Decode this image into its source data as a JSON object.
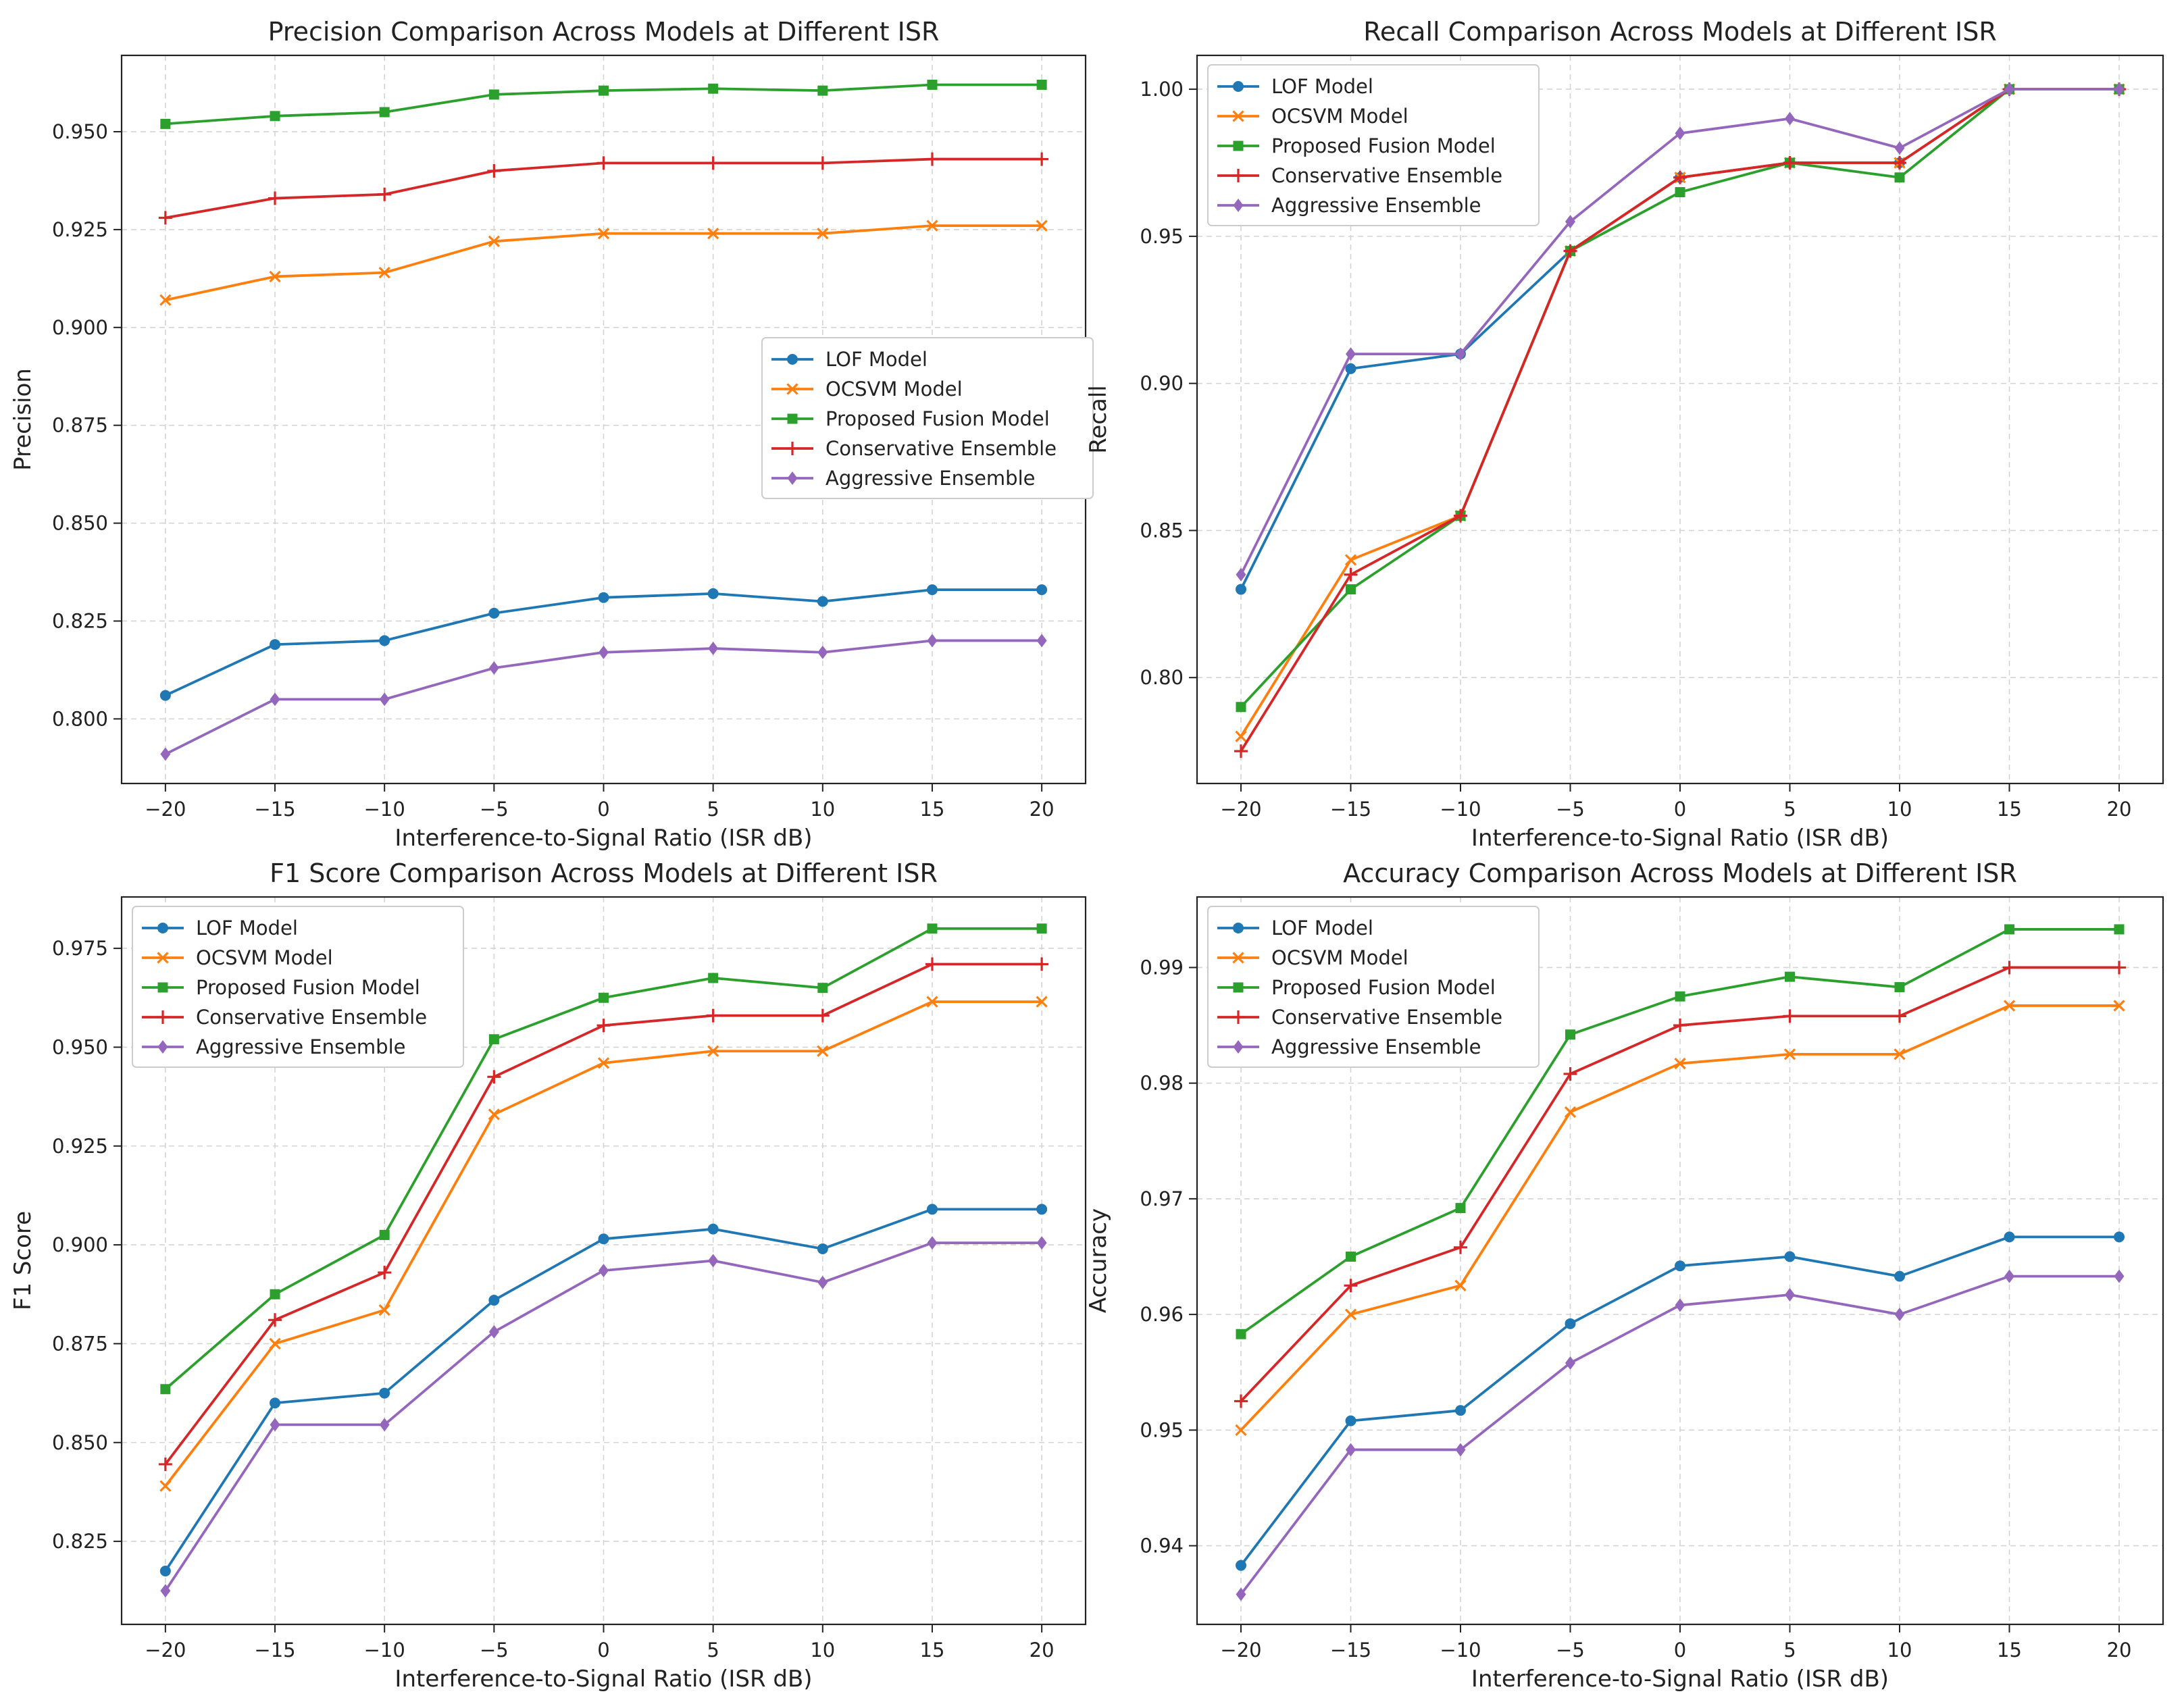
{
  "colors": {
    "lof": "#1f77b4",
    "ocsvm": "#ff7f0e",
    "fusion": "#2ca02c",
    "conservative": "#d62728",
    "aggressive": "#9467bd"
  },
  "chart_data": [
    {
      "type": "line",
      "title": "Precision Comparison Across Models at Different ISR",
      "xlabel": "Interference-to-Signal Ratio (ISR dB)",
      "ylabel": "Precision",
      "x": [
        -20,
        -15,
        -10,
        -5,
        0,
        5,
        10,
        15,
        20
      ],
      "xticks": [
        -20,
        -15,
        -10,
        -5,
        0,
        5,
        10,
        15,
        20
      ],
      "xtick_labels": [
        "−20",
        "−15",
        "−10",
        "−5",
        "0",
        "5",
        "10",
        "15",
        "20"
      ],
      "xlim": [
        -22,
        22
      ],
      "ylim": [
        0.7835,
        0.9695
      ],
      "yticks": [
        0.8,
        0.825,
        0.85,
        0.875,
        0.9,
        0.925,
        0.95
      ],
      "ytick_labels": [
        "0.800",
        "0.825",
        "0.850",
        "0.875",
        "0.900",
        "0.925",
        "0.950"
      ],
      "grid": true,
      "legend": "center-right",
      "series": [
        {
          "key": "lof",
          "name": "LOF Model",
          "marker": "circle",
          "values": [
            0.806,
            0.819,
            0.82,
            0.827,
            0.831,
            0.832,
            0.83,
            0.833,
            0.833
          ]
        },
        {
          "key": "ocsvm",
          "name": "OCSVM Model",
          "marker": "x",
          "values": [
            0.907,
            0.913,
            0.914,
            0.922,
            0.924,
            0.924,
            0.924,
            0.926,
            0.926
          ]
        },
        {
          "key": "fusion",
          "name": "Proposed Fusion Model",
          "marker": "square",
          "values": [
            0.952,
            0.954,
            0.955,
            0.9595,
            0.9605,
            0.961,
            0.9605,
            0.962,
            0.962
          ]
        },
        {
          "key": "conservative",
          "name": "Conservative Ensemble",
          "marker": "plus",
          "values": [
            0.928,
            0.933,
            0.934,
            0.94,
            0.942,
            0.942,
            0.942,
            0.943,
            0.943
          ]
        },
        {
          "key": "aggressive",
          "name": "Aggressive Ensemble",
          "marker": "diamond",
          "values": [
            0.791,
            0.805,
            0.805,
            0.813,
            0.817,
            0.818,
            0.817,
            0.82,
            0.82
          ]
        }
      ]
    },
    {
      "type": "line",
      "title": "Recall Comparison Across Models at Different ISR",
      "xlabel": "Interference-to-Signal Ratio (ISR dB)",
      "ylabel": "Recall",
      "x": [
        -20,
        -15,
        -10,
        -5,
        0,
        5,
        10,
        15,
        20
      ],
      "xticks": [
        -20,
        -15,
        -10,
        -5,
        0,
        5,
        10,
        15,
        20
      ],
      "xtick_labels": [
        "−20",
        "−15",
        "−10",
        "−5",
        "0",
        "5",
        "10",
        "15",
        "20"
      ],
      "xlim": [
        -22,
        22
      ],
      "ylim": [
        0.764,
        1.0115
      ],
      "yticks": [
        0.8,
        0.85,
        0.9,
        0.95,
        1.0
      ],
      "ytick_labels": [
        "0.80",
        "0.85",
        "0.90",
        "0.95",
        "1.00"
      ],
      "grid": true,
      "legend": "top-left",
      "series": [
        {
          "key": "lof",
          "name": "LOF Model",
          "marker": "circle",
          "values": [
            0.83,
            0.905,
            0.91,
            0.945,
            0.97,
            0.975,
            0.975,
            1.0,
            1.0
          ]
        },
        {
          "key": "ocsvm",
          "name": "OCSVM Model",
          "marker": "x",
          "values": [
            0.78,
            0.84,
            0.855,
            0.945,
            0.97,
            0.975,
            0.975,
            1.0,
            1.0
          ]
        },
        {
          "key": "fusion",
          "name": "Proposed Fusion Model",
          "marker": "square",
          "values": [
            0.79,
            0.83,
            0.855,
            0.945,
            0.965,
            0.975,
            0.97,
            1.0,
            1.0
          ]
        },
        {
          "key": "conservative",
          "name": "Conservative Ensemble",
          "marker": "plus",
          "values": [
            0.775,
            0.835,
            0.855,
            0.945,
            0.97,
            0.975,
            0.975,
            1.0,
            1.0
          ]
        },
        {
          "key": "aggressive",
          "name": "Aggressive Ensemble",
          "marker": "diamond",
          "values": [
            0.835,
            0.91,
            0.91,
            0.955,
            0.985,
            0.99,
            0.98,
            1.0,
            1.0
          ]
        }
      ]
    },
    {
      "type": "line",
      "title": "F1 Score Comparison Across Models at Different ISR",
      "xlabel": "Interference-to-Signal Ratio (ISR dB)",
      "ylabel": "F1 Score",
      "x": [
        -20,
        -15,
        -10,
        -5,
        0,
        5,
        10,
        15,
        20
      ],
      "xticks": [
        -20,
        -15,
        -10,
        -5,
        0,
        5,
        10,
        15,
        20
      ],
      "xtick_labels": [
        "−20",
        "−15",
        "−10",
        "−5",
        "0",
        "5",
        "10",
        "15",
        "20"
      ],
      "xlim": [
        -22,
        22
      ],
      "ylim": [
        0.804,
        0.988
      ],
      "yticks": [
        0.825,
        0.85,
        0.875,
        0.9,
        0.925,
        0.95,
        0.975
      ],
      "ytick_labels": [
        "0.825",
        "0.850",
        "0.875",
        "0.900",
        "0.925",
        "0.950",
        "0.975"
      ],
      "grid": true,
      "legend": "top-left",
      "series": [
        {
          "key": "lof",
          "name": "LOF Model",
          "marker": "circle",
          "values": [
            0.8175,
            0.86,
            0.8625,
            0.886,
            0.9015,
            0.904,
            0.899,
            0.909,
            0.909
          ]
        },
        {
          "key": "ocsvm",
          "name": "OCSVM Model",
          "marker": "x",
          "values": [
            0.839,
            0.875,
            0.8835,
            0.933,
            0.946,
            0.949,
            0.949,
            0.9615,
            0.9615
          ]
        },
        {
          "key": "fusion",
          "name": "Proposed Fusion Model",
          "marker": "square",
          "values": [
            0.8635,
            0.8875,
            0.9025,
            0.952,
            0.9625,
            0.9675,
            0.965,
            0.98,
            0.98
          ]
        },
        {
          "key": "conservative",
          "name": "Conservative Ensemble",
          "marker": "plus",
          "values": [
            0.8445,
            0.881,
            0.893,
            0.9425,
            0.9555,
            0.958,
            0.958,
            0.971,
            0.971
          ]
        },
        {
          "key": "aggressive",
          "name": "Aggressive Ensemble",
          "marker": "diamond",
          "values": [
            0.8125,
            0.8545,
            0.8545,
            0.878,
            0.8935,
            0.896,
            0.8905,
            0.9005,
            0.9005
          ]
        }
      ]
    },
    {
      "type": "line",
      "title": "Accuracy Comparison Across Models at Different ISR",
      "xlabel": "Interference-to-Signal Ratio (ISR dB)",
      "ylabel": "Accuracy",
      "x": [
        -20,
        -15,
        -10,
        -5,
        0,
        5,
        10,
        15,
        20
      ],
      "xticks": [
        -20,
        -15,
        -10,
        -5,
        0,
        5,
        10,
        15,
        20
      ],
      "xtick_labels": [
        "−20",
        "−15",
        "−10",
        "−5",
        "0",
        "5",
        "10",
        "15",
        "20"
      ],
      "xlim": [
        -22,
        22
      ],
      "ylim": [
        0.9332,
        0.9961
      ],
      "yticks": [
        0.94,
        0.95,
        0.96,
        0.97,
        0.98,
        0.99
      ],
      "ytick_labels": [
        "0.94",
        "0.95",
        "0.96",
        "0.97",
        "0.98",
        "0.99"
      ],
      "grid": true,
      "legend": "top-left",
      "series": [
        {
          "key": "lof",
          "name": "LOF Model",
          "marker": "circle",
          "values": [
            0.9383,
            0.9508,
            0.9517,
            0.9592,
            0.9642,
            0.965,
            0.9633,
            0.9667,
            0.9667
          ]
        },
        {
          "key": "ocsvm",
          "name": "OCSVM Model",
          "marker": "x",
          "values": [
            0.95,
            0.96,
            0.9625,
            0.9775,
            0.9817,
            0.9825,
            0.9825,
            0.9867,
            0.9867
          ]
        },
        {
          "key": "fusion",
          "name": "Proposed Fusion Model",
          "marker": "square",
          "values": [
            0.9583,
            0.965,
            0.9692,
            0.9842,
            0.9875,
            0.9892,
            0.9883,
            0.9933,
            0.9933
          ]
        },
        {
          "key": "conservative",
          "name": "Conservative Ensemble",
          "marker": "plus",
          "values": [
            0.9525,
            0.9625,
            0.9658,
            0.9808,
            0.985,
            0.9858,
            0.9858,
            0.99,
            0.99
          ]
        },
        {
          "key": "aggressive",
          "name": "Aggressive Ensemble",
          "marker": "diamond",
          "values": [
            0.9358,
            0.9483,
            0.9483,
            0.9558,
            0.9608,
            0.9617,
            0.96,
            0.9633,
            0.9633
          ]
        }
      ]
    }
  ]
}
